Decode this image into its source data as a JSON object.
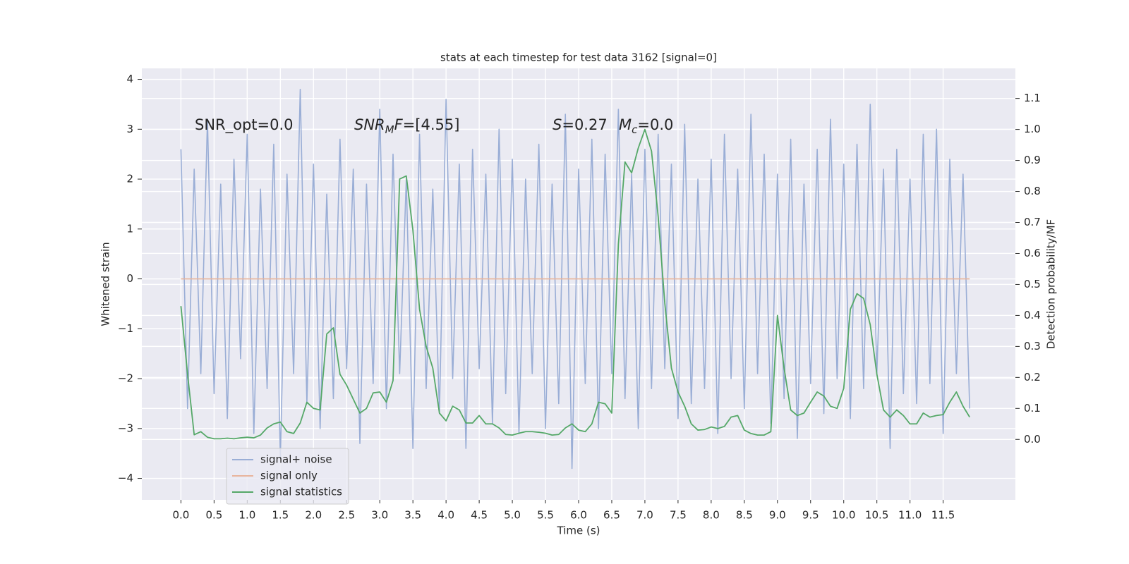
{
  "chart_data": {
    "type": "line",
    "title": "stats at each timestep for test data 3162 [signal=0]",
    "xlabel": "Time (s)",
    "ylabel": "Whitened strain",
    "y2label": "Detection probability/MF",
    "grid": true,
    "legend": "lower left",
    "background": "#eaeaf2",
    "xlim": [
      -0.59,
      12.59
    ],
    "ylim": [
      -4.43,
      4.22
    ],
    "y2lim": [
      -0.195,
      1.197
    ],
    "xticks": [
      {
        "value": 0,
        "label": "0.0"
      },
      0.5,
      {
        "value": 1,
        "label": "1.0"
      },
      1.5,
      {
        "value": 2,
        "label": "2.0"
      },
      2.5,
      {
        "value": 3,
        "label": "3.0"
      },
      3.5,
      {
        "value": 4,
        "label": "4.0"
      },
      4.5,
      {
        "value": 5,
        "label": "5.0"
      },
      5.5,
      {
        "value": 6,
        "label": "6.0"
      },
      6.5,
      {
        "value": 7,
        "label": "7.0"
      },
      7.5,
      {
        "value": 8,
        "label": "8.0"
      },
      8.5,
      {
        "value": 9,
        "label": "9.0"
      },
      9.5,
      {
        "value": 10,
        "label": "10.0"
      },
      10.5,
      {
        "value": 11,
        "label": "11.0"
      },
      11.5
    ],
    "yticks": [
      {
        "value": -4,
        "label": "−4"
      },
      {
        "value": -3,
        "label": "−3"
      },
      {
        "value": -2,
        "label": "−2"
      },
      {
        "value": -1,
        "label": "−1"
      },
      0,
      1,
      2,
      3,
      4
    ],
    "y2ticks": [
      {
        "value": 0,
        "label": "0.0"
      },
      0.1,
      0.2,
      0.3,
      0.4,
      0.5,
      0.6,
      0.7,
      0.8,
      0.9,
      {
        "value": 1,
        "label": "1.0"
      },
      1.1
    ],
    "annotations": [
      [
        {
          "text": "SNR_opt=0.0"
        }
      ],
      [
        {
          "text": "SNR",
          "italic": true
        },
        {
          "text": "M",
          "italic": true,
          "sub": true
        },
        {
          "text": "F",
          "italic": true
        },
        {
          "text": "=[4.55]"
        }
      ],
      [
        {
          "text": "S",
          "italic": true
        },
        {
          "text": "=0.27"
        }
      ],
      [
        {
          "text": "M",
          "italic": true
        },
        {
          "text": "c",
          "italic": true,
          "sub": true
        },
        {
          "text": "=0.0"
        }
      ]
    ],
    "x": [
      0.0,
      0.1,
      0.2,
      0.3,
      0.4,
      0.5,
      0.6,
      0.7,
      0.8,
      0.9,
      1.0,
      1.1,
      1.2,
      1.3,
      1.4,
      1.5,
      1.6,
      1.7,
      1.8,
      1.9,
      2.0,
      2.1,
      2.2,
      2.3,
      2.4,
      2.5,
      2.6,
      2.7,
      2.8,
      2.9,
      3.0,
      3.1,
      3.2,
      3.3,
      3.4,
      3.5,
      3.6,
      3.7,
      3.8,
      3.9,
      4.0,
      4.1,
      4.2,
      4.3,
      4.4,
      4.5,
      4.6,
      4.7,
      4.8,
      4.9,
      5.0,
      5.1,
      5.2,
      5.3,
      5.4,
      5.5,
      5.6,
      5.7,
      5.8,
      5.9,
      6.0,
      6.1,
      6.2,
      6.3,
      6.4,
      6.5,
      6.6,
      6.7,
      6.8,
      6.9,
      7.0,
      7.1,
      7.2,
      7.3,
      7.4,
      7.5,
      7.6,
      7.7,
      7.8,
      7.9,
      8.0,
      8.1,
      8.2,
      8.3,
      8.4,
      8.5,
      8.6,
      8.7,
      8.8,
      8.9,
      9.0,
      9.1,
      9.2,
      9.3,
      9.4,
      9.5,
      9.6,
      9.7,
      9.8,
      9.9,
      10.0,
      10.1,
      10.2,
      10.3,
      10.4,
      10.5,
      10.6,
      10.7,
      10.8,
      10.9,
      11.0,
      11.1,
      11.2,
      11.3,
      11.4,
      11.5,
      11.6,
      11.7,
      11.8,
      11.9
    ],
    "series": [
      {
        "name": "signal+ noise",
        "color": "#9aaed6",
        "axis": "y",
        "values": [
          2.6,
          -2.6,
          2.2,
          -1.9,
          3.2,
          -2.3,
          1.9,
          -2.8,
          2.4,
          -1.6,
          2.9,
          -3.1,
          1.8,
          -2.2,
          2.7,
          -3.6,
          2.1,
          -1.9,
          3.8,
          -2.5,
          2.3,
          -3.0,
          1.7,
          -2.4,
          2.8,
          -1.8,
          2.2,
          -3.3,
          1.9,
          -2.1,
          3.4,
          -2.6,
          2.5,
          -1.9,
          2.0,
          -3.4,
          2.9,
          -2.2,
          1.8,
          -2.7,
          3.6,
          -2.0,
          2.3,
          -3.4,
          2.6,
          -1.8,
          2.1,
          -2.9,
          3.0,
          -2.3,
          2.4,
          -3.1,
          2.0,
          -1.9,
          2.7,
          -3.0,
          1.9,
          -2.5,
          3.3,
          -3.8,
          2.2,
          -2.1,
          2.8,
          -3.0,
          2.5,
          -1.9,
          3.4,
          -2.4,
          2.1,
          -3.0,
          2.6,
          -2.2,
          2.9,
          -1.8,
          2.3,
          -2.8,
          3.1,
          -2.5,
          2.0,
          -2.2,
          2.4,
          -3.1,
          2.9,
          -2.0,
          2.2,
          -2.6,
          3.3,
          -1.9,
          2.5,
          -2.9,
          2.1,
          -2.4,
          2.8,
          -3.2,
          1.9,
          -2.1,
          2.6,
          -2.7,
          3.2,
          -2.0,
          2.3,
          -2.8,
          2.7,
          -2.2,
          3.5,
          -1.9,
          2.2,
          -3.4,
          2.6,
          -2.3,
          2.0,
          -2.5,
          2.9,
          -2.1,
          3.0,
          -3.1,
          2.4,
          -1.9,
          2.1,
          -2.6
        ]
      },
      {
        "name": "signal only",
        "color": "#e8b49c",
        "axis": "y",
        "values": [
          0,
          0,
          0,
          0,
          0,
          0,
          0,
          0,
          0,
          0,
          0,
          0,
          0,
          0,
          0,
          0,
          0,
          0,
          0,
          0,
          0,
          0,
          0,
          0,
          0,
          0,
          0,
          0,
          0,
          0,
          0,
          0,
          0,
          0,
          0,
          0,
          0,
          0,
          0,
          0,
          0,
          0,
          0,
          0,
          0,
          0,
          0,
          0,
          0,
          0,
          0,
          0,
          0,
          0,
          0,
          0,
          0,
          0,
          0,
          0,
          0,
          0,
          0,
          0,
          0,
          0,
          0,
          0,
          0,
          0,
          0,
          0,
          0,
          0,
          0,
          0,
          0,
          0,
          0,
          0,
          0,
          0,
          0,
          0,
          0,
          0,
          0,
          0,
          0,
          0,
          0,
          0,
          0,
          0,
          0,
          0,
          0,
          0,
          0,
          0,
          0,
          0,
          0,
          0,
          0,
          0,
          0,
          0,
          0,
          0,
          0,
          0,
          0,
          0,
          0,
          0,
          0,
          0,
          0,
          0
        ]
      },
      {
        "name": "signal statistics",
        "color": "#55a868",
        "axis": "y2",
        "values": [
          0.43,
          0.21,
          0.015,
          0.025,
          0.007,
          0.002,
          0.002,
          0.004,
          0.002,
          0.005,
          0.007,
          0.005,
          0.014,
          0.037,
          0.05,
          0.056,
          0.025,
          0.019,
          0.053,
          0.12,
          0.1,
          0.095,
          0.34,
          0.36,
          0.21,
          0.175,
          0.13,
          0.085,
          0.1,
          0.15,
          0.153,
          0.12,
          0.19,
          0.84,
          0.85,
          0.675,
          0.42,
          0.3,
          0.23,
          0.085,
          0.06,
          0.107,
          0.095,
          0.053,
          0.053,
          0.077,
          0.05,
          0.05,
          0.037,
          0.016,
          0.014,
          0.02,
          0.025,
          0.025,
          0.023,
          0.02,
          0.014,
          0.016,
          0.037,
          0.05,
          0.03,
          0.025,
          0.05,
          0.12,
          0.115,
          0.085,
          0.63,
          0.895,
          0.86,
          0.94,
          1.0,
          0.93,
          0.72,
          0.44,
          0.23,
          0.153,
          0.107,
          0.05,
          0.03,
          0.032,
          0.04,
          0.035,
          0.042,
          0.072,
          0.077,
          0.03,
          0.019,
          0.014,
          0.014,
          0.025,
          0.4,
          0.23,
          0.095,
          0.077,
          0.085,
          0.12,
          0.153,
          0.14,
          0.107,
          0.1,
          0.165,
          0.42,
          0.47,
          0.455,
          0.37,
          0.21,
          0.095,
          0.072,
          0.095,
          0.077,
          0.05,
          0.05,
          0.085,
          0.072,
          0.077,
          0.08,
          0.12,
          0.153,
          0.107,
          0.072
        ]
      }
    ]
  }
}
